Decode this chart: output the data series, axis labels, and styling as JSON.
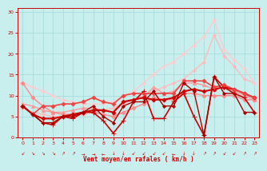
{
  "title": "",
  "xlabel": "Vent moyen/en rafales ( km/h )",
  "xlim": [
    -0.5,
    23.5
  ],
  "ylim": [
    0,
    31
  ],
  "xticks": [
    0,
    1,
    2,
    3,
    4,
    5,
    6,
    7,
    8,
    9,
    10,
    11,
    12,
    13,
    14,
    15,
    16,
    17,
    18,
    19,
    20,
    21,
    22,
    23
  ],
  "yticks": [
    0,
    5,
    10,
    15,
    20,
    25,
    30
  ],
  "background_color": "#c8eeee",
  "grid_color": "#aadddd",
  "lines": [
    {
      "comment": "light pink diagonal line 1 - goes from ~7 at x=0 to ~25 at x=19",
      "x": [
        0,
        1,
        2,
        3,
        4,
        5,
        6,
        7,
        8,
        9,
        10,
        11,
        12,
        13,
        14,
        15,
        16,
        17,
        18,
        19,
        20,
        21,
        22,
        23
      ],
      "y": [
        7,
        6,
        5.5,
        5,
        5,
        5,
        5.5,
        6,
        6.5,
        7,
        8,
        9,
        10,
        11,
        12,
        13,
        14,
        16,
        18,
        24.5,
        19.5,
        17,
        14,
        13
      ],
      "color": "#ffbbbb",
      "lw": 1.0,
      "marker": "D",
      "ms": 2.0
    },
    {
      "comment": "light pink diagonal line 2 - goes from ~13 at x=0 to ~28 at x=19",
      "x": [
        0,
        1,
        2,
        3,
        4,
        5,
        6,
        7,
        8,
        9,
        10,
        11,
        12,
        13,
        14,
        15,
        16,
        17,
        18,
        19,
        20,
        21,
        22,
        23
      ],
      "y": [
        13,
        12,
        11,
        10,
        9,
        8.5,
        8,
        8,
        8,
        8.5,
        10,
        11,
        13,
        15,
        17,
        18,
        20,
        22,
        24,
        28,
        21,
        18.5,
        16.5,
        13
      ],
      "color": "#ffcccc",
      "lw": 1.0,
      "marker": "D",
      "ms": 2.0
    },
    {
      "comment": "medium pink line with triangle markers",
      "x": [
        0,
        1,
        2,
        3,
        4,
        5,
        6,
        7,
        8,
        9,
        10,
        11,
        12,
        13,
        14,
        15,
        16,
        17,
        18,
        19,
        20,
        21,
        22,
        23
      ],
      "y": [
        8,
        7.5,
        6.5,
        6,
        6,
        6.5,
        7,
        7,
        6.5,
        6,
        8.5,
        9,
        9.5,
        12,
        10.5,
        11,
        13,
        13,
        12.5,
        11.5,
        12,
        11,
        10,
        9
      ],
      "color": "#ff9999",
      "lw": 1.0,
      "marker": "^",
      "ms": 3.0
    },
    {
      "comment": "medium pink with diamond markers",
      "x": [
        0,
        1,
        2,
        3,
        4,
        5,
        6,
        7,
        8,
        9,
        10,
        11,
        12,
        13,
        14,
        15,
        16,
        17,
        18,
        19,
        20,
        21,
        22,
        23
      ],
      "y": [
        13,
        9.5,
        7.5,
        6,
        5.5,
        5.5,
        6,
        6,
        5.5,
        5,
        6,
        7,
        8,
        9.5,
        9,
        9,
        10.5,
        10.5,
        10,
        10,
        10,
        10,
        9,
        9
      ],
      "color": "#ff8888",
      "lw": 1.0,
      "marker": "D",
      "ms": 2.5
    },
    {
      "comment": "dark red line with cross markers - the most volatile",
      "x": [
        0,
        1,
        2,
        3,
        4,
        5,
        6,
        7,
        8,
        9,
        10,
        11,
        12,
        13,
        14,
        15,
        16,
        17,
        18,
        19,
        20,
        21,
        22,
        23
      ],
      "y": [
        7.5,
        5.5,
        3.5,
        3.0,
        5.0,
        4.5,
        6.0,
        6.0,
        4.0,
        1.0,
        4.0,
        8.5,
        11.0,
        4.5,
        4.5,
        8.5,
        10.5,
        5.0,
        0.5,
        14.5,
        12.0,
        10.5,
        9.5,
        6.0
      ],
      "color": "#cc0000",
      "lw": 1.2,
      "marker": "+",
      "ms": 5
    },
    {
      "comment": "dark red smooth line",
      "x": [
        0,
        1,
        2,
        3,
        4,
        5,
        6,
        7,
        8,
        9,
        10,
        11,
        12,
        13,
        14,
        15,
        16,
        17,
        18,
        19,
        20,
        21,
        22,
        23
      ],
      "y": [
        7.5,
        5.5,
        4.5,
        4.5,
        5.0,
        5.5,
        6.0,
        6.5,
        6.5,
        6.0,
        8.5,
        9.0,
        9.5,
        9.0,
        9.0,
        9.5,
        11.0,
        11.5,
        11.0,
        11.5,
        12.0,
        11.5,
        10.5,
        9.5
      ],
      "color": "#cc0000",
      "lw": 1.5,
      "marker": "D",
      "ms": 2.5
    },
    {
      "comment": "red line with small diamond markers",
      "x": [
        0,
        1,
        2,
        3,
        4,
        5,
        6,
        7,
        8,
        9,
        10,
        11,
        12,
        13,
        14,
        15,
        16,
        17,
        18,
        19,
        20,
        21,
        22,
        23
      ],
      "y": [
        7.5,
        5.5,
        7.5,
        7.5,
        8.0,
        8.0,
        8.5,
        9.5,
        8.5,
        8.0,
        10.0,
        10.5,
        10.5,
        10.5,
        10.5,
        10.5,
        13.5,
        13.5,
        13.5,
        12.0,
        12.5,
        11.5,
        10.5,
        9.5
      ],
      "color": "#ee4444",
      "lw": 1.2,
      "marker": "D",
      "ms": 2.5
    },
    {
      "comment": "dark red dip line that goes to 0 at x=18",
      "x": [
        0,
        1,
        2,
        3,
        4,
        5,
        6,
        7,
        8,
        9,
        10,
        11,
        12,
        13,
        14,
        15,
        16,
        17,
        18,
        19,
        20,
        21,
        22,
        23
      ],
      "y": [
        7.5,
        5.5,
        3.5,
        3.5,
        5.0,
        5.0,
        6.0,
        7.5,
        5.0,
        3.5,
        7.5,
        8.5,
        8.5,
        11.0,
        7.5,
        7.5,
        13.0,
        11.0,
        0.5,
        14.5,
        10.5,
        10.5,
        6.0,
        6.0
      ],
      "color": "#aa0000",
      "lw": 1.0,
      "marker": "D",
      "ms": 2.0
    }
  ],
  "wind_arrows": [
    {
      "x": 0,
      "sym": "↙"
    },
    {
      "x": 1,
      "sym": "↘"
    },
    {
      "x": 2,
      "sym": "↘"
    },
    {
      "x": 3,
      "sym": "↘"
    },
    {
      "x": 4,
      "sym": "↗"
    },
    {
      "x": 5,
      "sym": "↗"
    },
    {
      "x": 6,
      "sym": "→"
    },
    {
      "x": 7,
      "sym": "→"
    },
    {
      "x": 8,
      "sym": "←"
    },
    {
      "x": 9,
      "sym": "↓"
    },
    {
      "x": 10,
      "sym": "↓"
    },
    {
      "x": 11,
      "sym": "↙"
    },
    {
      "x": 12,
      "sym": "↙"
    },
    {
      "x": 13,
      "sym": "↙"
    },
    {
      "x": 14,
      "sym": "↙"
    },
    {
      "x": 15,
      "sym": "←"
    },
    {
      "x": 16,
      "sym": "↓"
    },
    {
      "x": 17,
      "sym": "↓"
    },
    {
      "x": 18,
      "sym": "↗"
    },
    {
      "x": 19,
      "sym": "↗"
    },
    {
      "x": 20,
      "sym": "↙"
    },
    {
      "x": 21,
      "sym": "↙"
    },
    {
      "x": 22,
      "sym": "↗"
    },
    {
      "x": 23,
      "sym": "↗"
    }
  ]
}
